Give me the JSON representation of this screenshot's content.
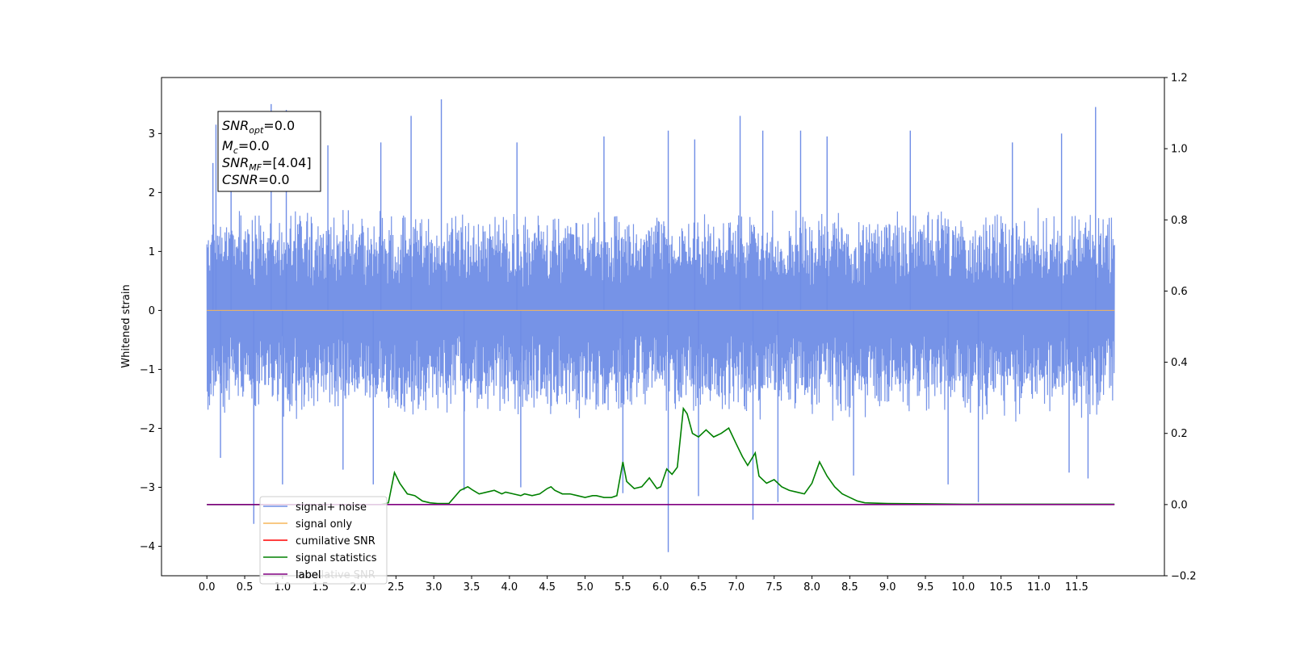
{
  "chart_data": {
    "type": "line",
    "xlabel": "",
    "ylabel": "Whitened strain",
    "xlim": [
      -0.6,
      12.66
    ],
    "ylim": [
      -4.5,
      3.95
    ],
    "y2lim": [
      -0.2,
      1.2
    ],
    "x_ticks": [
      0.0,
      0.5,
      1.0,
      1.5,
      2.0,
      2.5,
      3.0,
      3.5,
      4.0,
      4.5,
      5.0,
      5.5,
      6.0,
      6.5,
      7.0,
      7.5,
      8.0,
      8.5,
      9.0,
      9.5,
      10.0,
      10.5,
      11.0,
      11.5
    ],
    "x_tick_labels": [
      "0.0",
      "0.5",
      "1.0",
      "1.5",
      "2.0",
      "2.5",
      "3.0",
      "3.5",
      "4.0",
      "4.5",
      "5.0",
      "5.5",
      "6.0",
      "6.5",
      "7.0",
      "7.5",
      "8.0",
      "8.5",
      "9.0",
      "9.5",
      "10.0",
      "10.5",
      "11.0",
      "11.5"
    ],
    "y_ticks": [
      -4,
      -3,
      -2,
      -1,
      0,
      1,
      2,
      3
    ],
    "y_tick_labels": [
      "−4",
      "−3",
      "−2",
      "−1",
      "0",
      "1",
      "2",
      "3"
    ],
    "y2_ticks": [
      -0.2,
      0.0,
      0.2,
      0.4,
      0.6,
      0.8,
      1.0,
      1.2
    ],
    "y2_tick_labels": [
      "−0.2",
      "0.0",
      "0.2",
      "0.4",
      "0.6",
      "0.8",
      "1.0",
      "1.2"
    ],
    "grid": false,
    "legend_position": "lower-left",
    "series": [
      {
        "name": "signal+ noise",
        "axis": "left",
        "color": "#6f8de6",
        "render": "noise",
        "x_range": [
          0.0,
          12.0
        ],
        "y_min": -1.9,
        "y_max": 1.75,
        "spikes": [
          [
            0.08,
            2.5
          ],
          [
            0.12,
            3.15
          ],
          [
            0.32,
            3.25
          ],
          [
            0.85,
            3.5
          ],
          [
            1.05,
            3.4
          ],
          [
            1.6,
            2.8
          ],
          [
            2.3,
            2.85
          ],
          [
            2.7,
            3.3
          ],
          [
            3.1,
            3.58
          ],
          [
            4.1,
            2.85
          ],
          [
            5.25,
            2.95
          ],
          [
            6.1,
            3.05
          ],
          [
            6.45,
            2.9
          ],
          [
            7.05,
            3.3
          ],
          [
            7.35,
            3.05
          ],
          [
            7.85,
            3.05
          ],
          [
            8.2,
            2.95
          ],
          [
            9.3,
            3.05
          ],
          [
            10.65,
            2.85
          ],
          [
            11.3,
            3.0
          ],
          [
            11.75,
            3.45
          ],
          [
            0.18,
            -2.5
          ],
          [
            0.62,
            -3.62
          ],
          [
            1.0,
            -2.95
          ],
          [
            1.8,
            -2.7
          ],
          [
            2.2,
            -2.95
          ],
          [
            3.4,
            -3.05
          ],
          [
            4.15,
            -3.0
          ],
          [
            5.5,
            -3.1
          ],
          [
            6.1,
            -4.1
          ],
          [
            6.5,
            -3.15
          ],
          [
            7.22,
            -3.55
          ],
          [
            7.55,
            -3.25
          ],
          [
            8.55,
            -2.8
          ],
          [
            9.8,
            -2.95
          ],
          [
            10.2,
            -3.25
          ],
          [
            11.4,
            -2.75
          ],
          [
            11.65,
            -2.85
          ]
        ]
      },
      {
        "name": "signal only",
        "axis": "left",
        "color": "#f5b55a",
        "x": [
          0.0,
          12.0
        ],
        "y": [
          0.0,
          0.0
        ]
      },
      {
        "name": "cumilative SNR",
        "axis": "right",
        "color": "#ff0000",
        "x": [],
        "y": []
      },
      {
        "name": "signal statistics",
        "axis": "right",
        "color": "#008000",
        "x": [
          0.0,
          2.3,
          2.4,
          2.48,
          2.55,
          2.65,
          2.75,
          2.85,
          2.95,
          3.05,
          3.2,
          3.35,
          3.45,
          3.52,
          3.6,
          3.7,
          3.8,
          3.9,
          3.95,
          4.05,
          4.15,
          4.2,
          4.3,
          4.4,
          4.5,
          4.55,
          4.6,
          4.7,
          4.8,
          4.9,
          5.0,
          5.1,
          5.15,
          5.25,
          5.35,
          5.42,
          5.5,
          5.55,
          5.65,
          5.75,
          5.85,
          5.95,
          6.0,
          6.08,
          6.15,
          6.22,
          6.3,
          6.35,
          6.42,
          6.5,
          6.6,
          6.7,
          6.8,
          6.9,
          7.0,
          7.08,
          7.15,
          7.25,
          7.3,
          7.4,
          7.5,
          7.6,
          7.7,
          7.8,
          7.9,
          8.0,
          8.1,
          8.2,
          8.3,
          8.4,
          8.5,
          8.6,
          8.7,
          9.0,
          9.5,
          10.0,
          11.0,
          12.0
        ],
        "y": [
          0.0,
          0.0,
          0.005,
          0.09,
          0.06,
          0.03,
          0.025,
          0.01,
          0.005,
          0.003,
          0.003,
          0.04,
          0.05,
          0.04,
          0.03,
          0.035,
          0.04,
          0.03,
          0.035,
          0.03,
          0.025,
          0.03,
          0.025,
          0.03,
          0.045,
          0.05,
          0.04,
          0.03,
          0.03,
          0.025,
          0.02,
          0.025,
          0.025,
          0.02,
          0.02,
          0.025,
          0.12,
          0.065,
          0.045,
          0.05,
          0.075,
          0.045,
          0.05,
          0.1,
          0.085,
          0.105,
          0.27,
          0.255,
          0.2,
          0.19,
          0.21,
          0.19,
          0.2,
          0.215,
          0.17,
          0.135,
          0.11,
          0.145,
          0.08,
          0.06,
          0.07,
          0.05,
          0.04,
          0.035,
          0.03,
          0.06,
          0.12,
          0.08,
          0.05,
          0.03,
          0.02,
          0.01,
          0.005,
          0.003,
          0.002,
          0.001,
          0.001,
          0.001
        ]
      },
      {
        "name": "label",
        "axis": "right",
        "color": "#800080",
        "x": [
          0.0,
          12.0
        ],
        "y": [
          0.0,
          0.0
        ]
      }
    ],
    "legend_overlay": "cumilative SNR",
    "annotation_lines": [
      {
        "base": "SNR",
        "sub": "opt",
        "rest": "=0.0"
      },
      {
        "base": "M",
        "sub": "c",
        "rest": "=0.0"
      },
      {
        "base": "SNR",
        "sub": "MF",
        "rest": "=[4.04]"
      },
      {
        "base": "CSNR",
        "sub": "",
        "rest": "=0.0"
      }
    ]
  }
}
